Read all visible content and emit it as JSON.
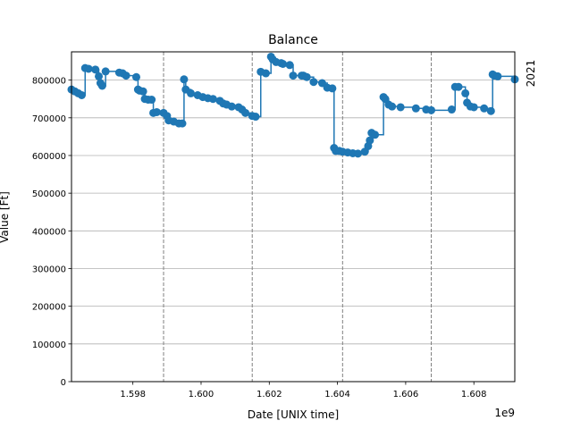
{
  "chart_data": {
    "type": "line",
    "title": "Balance",
    "xlabel": "Date [UNIX time]",
    "ylabel": "Value [Ft]",
    "x_offset_label": "1e9",
    "xlim": [
      1.5962,
      1.6092
    ],
    "ylim": [
      0,
      875000
    ],
    "grid": "y",
    "xticks": [
      1.598,
      1.6,
      1.602,
      1.604,
      1.606,
      1.608
    ],
    "xtick_labels": [
      "1.598",
      "1.600",
      "1.602",
      "1.604",
      "1.606",
      "1.608"
    ],
    "yticks": [
      0,
      100000,
      200000,
      300000,
      400000,
      500000,
      600000,
      700000,
      800000
    ],
    "ytick_labels": [
      "0",
      "100000",
      "200000",
      "300000",
      "400000",
      "500000",
      "600000",
      "700000",
      "800000"
    ],
    "vlines": [
      1.5989,
      1.6015,
      1.60415,
      1.60675
    ],
    "annotations": [
      {
        "text": "2021",
        "x": 1.6092,
        "y": 800000
      }
    ],
    "series": [
      {
        "color": "#1f77b4",
        "step": "post",
        "x": [
          1.5962,
          1.5963,
          1.5964,
          1.5965,
          1.5966,
          1.5967,
          1.5969,
          1.597,
          1.59705,
          1.5971,
          1.5972,
          1.5976,
          1.5977,
          1.5978,
          1.5981,
          1.59815,
          1.5982,
          1.5983,
          1.59835,
          1.59845,
          1.59855,
          1.5986,
          1.5987,
          1.5989,
          1.599,
          1.59905,
          1.5992,
          1.59935,
          1.59945,
          1.5995,
          1.59955,
          1.5997,
          1.5999,
          1.60005,
          1.6002,
          1.60035,
          1.60055,
          1.60065,
          1.60075,
          1.6009,
          1.6011,
          1.6012,
          1.6013,
          1.6015,
          1.6016,
          1.60175,
          1.6019,
          1.60205,
          1.6021,
          1.6022,
          1.60235,
          1.6024,
          1.6026,
          1.6027,
          1.60295,
          1.603,
          1.6031,
          1.6033,
          1.60355,
          1.6037,
          1.60385,
          1.6039,
          1.60395,
          1.60405,
          1.60415,
          1.6043,
          1.60445,
          1.6046,
          1.6048,
          1.6049,
          1.60495,
          1.605,
          1.6051,
          1.60535,
          1.6054,
          1.6055,
          1.6056,
          1.60585,
          1.6063,
          1.6066,
          1.60675,
          1.60735,
          1.60745,
          1.60755,
          1.60775,
          1.6078,
          1.6079,
          1.608,
          1.6083,
          1.6085,
          1.60855,
          1.6086,
          1.6087,
          1.6092
        ],
        "y": [
          775000,
          770000,
          765000,
          760000,
          832000,
          830000,
          828000,
          810000,
          792000,
          785000,
          823000,
          820000,
          818000,
          812000,
          808000,
          775000,
          772000,
          770000,
          750000,
          748000,
          748000,
          713000,
          715000,
          713000,
          705000,
          693000,
          690000,
          685000,
          685000,
          802000,
          775000,
          765000,
          760000,
          755000,
          752000,
          750000,
          745000,
          738000,
          735000,
          730000,
          728000,
          722000,
          713000,
          705000,
          703000,
          822000,
          818000,
          862000,
          855000,
          848000,
          845000,
          843000,
          840000,
          812000,
          812000,
          812000,
          808000,
          795000,
          792000,
          780000,
          778000,
          620000,
          612000,
          612000,
          610000,
          608000,
          606000,
          605000,
          610000,
          625000,
          640000,
          660000,
          655000,
          755000,
          750000,
          735000,
          730000,
          728000,
          725000,
          722000,
          720000,
          722000,
          782000,
          782000,
          765000,
          740000,
          730000,
          728000,
          725000,
          718000,
          815000,
          812000,
          810000,
          802000
        ]
      }
    ]
  }
}
